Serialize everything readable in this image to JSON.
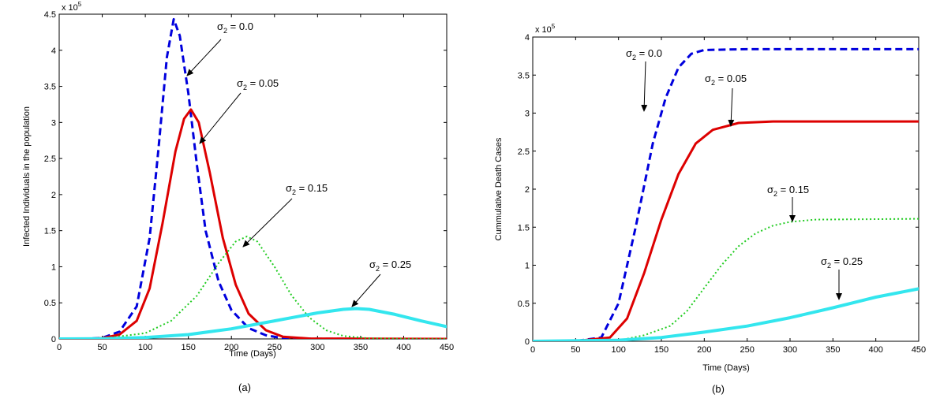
{
  "chart_data": [
    {
      "type": "line",
      "panel_label": "(a)",
      "xlabel": "Time (Days)",
      "ylabel": "Infected Individuals in the population",
      "xlim": [
        0,
        450
      ],
      "ylim": [
        0,
        450000
      ],
      "y_multiplier_base": "x 10",
      "y_multiplier_exp": "5",
      "xticks": [
        "0",
        "50",
        "100",
        "150",
        "200",
        "250",
        "300",
        "350",
        "400",
        "450"
      ],
      "yticks": [
        "0",
        "0.5",
        "1",
        "1.5",
        "2",
        "2.5",
        "3",
        "3.5",
        "4",
        "4.5"
      ],
      "series": [
        {
          "name": "σ2 = 0.0",
          "style": "dashed",
          "color": "#0000dd",
          "points": [
            [
              0,
              0
            ],
            [
              30,
              100
            ],
            [
              50,
              1500
            ],
            [
              70,
              10000
            ],
            [
              90,
              45000
            ],
            [
              105,
              140000
            ],
            [
              115,
              260000
            ],
            [
              125,
              390000
            ],
            [
              133,
              443000
            ],
            [
              140,
              420000
            ],
            [
              150,
              340000
            ],
            [
              160,
              240000
            ],
            [
              170,
              150000
            ],
            [
              185,
              80000
            ],
            [
              200,
              40000
            ],
            [
              220,
              15000
            ],
            [
              240,
              5000
            ],
            [
              260,
              1000
            ],
            [
              300,
              100
            ],
            [
              450,
              0
            ]
          ]
        },
        {
          "name": "σ2 = 0.05",
          "style": "solid",
          "color": "#dd0000",
          "points": [
            [
              0,
              0
            ],
            [
              30,
              100
            ],
            [
              50,
              1000
            ],
            [
              70,
              6000
            ],
            [
              90,
              25000
            ],
            [
              105,
              70000
            ],
            [
              120,
              160000
            ],
            [
              135,
              260000
            ],
            [
              145,
              305000
            ],
            [
              153,
              318000
            ],
            [
              162,
              300000
            ],
            [
              175,
              230000
            ],
            [
              190,
              140000
            ],
            [
              205,
              75000
            ],
            [
              220,
              35000
            ],
            [
              240,
              12000
            ],
            [
              260,
              3000
            ],
            [
              290,
              500
            ],
            [
              450,
              0
            ]
          ]
        },
        {
          "name": "σ2 = 0.15",
          "style": "dotted",
          "color": "#22cc22",
          "points": [
            [
              0,
              0
            ],
            [
              50,
              500
            ],
            [
              100,
              8000
            ],
            [
              130,
              25000
            ],
            [
              160,
              60000
            ],
            [
              185,
              105000
            ],
            [
              205,
              135000
            ],
            [
              218,
              142000
            ],
            [
              230,
              135000
            ],
            [
              250,
              100000
            ],
            [
              270,
              60000
            ],
            [
              290,
              30000
            ],
            [
              310,
              12000
            ],
            [
              330,
              4000
            ],
            [
              360,
              800
            ],
            [
              400,
              100
            ],
            [
              450,
              0
            ]
          ]
        },
        {
          "name": "σ2 = 0.25",
          "style": "thick",
          "color": "#33e6ee",
          "points": [
            [
              0,
              0
            ],
            [
              50,
              200
            ],
            [
              100,
              2000
            ],
            [
              150,
              6000
            ],
            [
              200,
              14000
            ],
            [
              250,
              25000
            ],
            [
              300,
              36000
            ],
            [
              330,
              41000
            ],
            [
              345,
              42000
            ],
            [
              360,
              41000
            ],
            [
              390,
              34000
            ],
            [
              420,
              25000
            ],
            [
              450,
              17000
            ]
          ]
        }
      ],
      "annotations": [
        {
          "base": "σ",
          "sub": "2",
          "rest": " = 0.0"
        },
        {
          "base": "σ",
          "sub": "2",
          "rest": " = 0.05"
        },
        {
          "base": "σ",
          "sub": "2",
          "rest": " = 0.15"
        },
        {
          "base": "σ",
          "sub": "2",
          "rest": " = 0.25"
        }
      ]
    },
    {
      "type": "line",
      "panel_label": "(b)",
      "xlabel": "Time (Days)",
      "ylabel": "Cummulative Death Cases",
      "xlim": [
        0,
        450
      ],
      "ylim": [
        0,
        400000
      ],
      "y_multiplier_base": "x 10",
      "y_multiplier_exp": "5",
      "xticks": [
        "0",
        "50",
        "100",
        "150",
        "200",
        "250",
        "300",
        "350",
        "400",
        "450"
      ],
      "yticks": [
        "0",
        "0.5",
        "1",
        "1.5",
        "2",
        "2.5",
        "3",
        "3.5",
        "4"
      ],
      "series": [
        {
          "name": "σ2 = 0.0",
          "style": "dashed",
          "color": "#0000dd",
          "points": [
            [
              0,
              0
            ],
            [
              50,
              300
            ],
            [
              80,
              5000
            ],
            [
              100,
              50000
            ],
            [
              120,
              150000
            ],
            [
              140,
              260000
            ],
            [
              155,
              320000
            ],
            [
              170,
              360000
            ],
            [
              185,
              378000
            ],
            [
              200,
              383000
            ],
            [
              250,
              384000
            ],
            [
              450,
              384000
            ]
          ]
        },
        {
          "name": "σ2 = 0.05",
          "style": "solid",
          "color": "#dd0000",
          "points": [
            [
              0,
              0
            ],
            [
              50,
              200
            ],
            [
              90,
              5000
            ],
            [
              110,
              30000
            ],
            [
              130,
              90000
            ],
            [
              150,
              160000
            ],
            [
              170,
              220000
            ],
            [
              190,
              260000
            ],
            [
              210,
              278000
            ],
            [
              240,
              287000
            ],
            [
              280,
              289000
            ],
            [
              450,
              289000
            ]
          ]
        },
        {
          "name": "σ2 = 0.15",
          "style": "dotted",
          "color": "#22cc22",
          "points": [
            [
              0,
              0
            ],
            [
              100,
              1000
            ],
            [
              130,
              8000
            ],
            [
              160,
              20000
            ],
            [
              180,
              40000
            ],
            [
              200,
              70000
            ],
            [
              220,
              100000
            ],
            [
              240,
              125000
            ],
            [
              260,
              142000
            ],
            [
              280,
              152000
            ],
            [
              300,
              157000
            ],
            [
              330,
              160000
            ],
            [
              450,
              161000
            ]
          ]
        },
        {
          "name": "σ2 = 0.25",
          "style": "thick",
          "color": "#33e6ee",
          "points": [
            [
              0,
              0
            ],
            [
              100,
              1500
            ],
            [
              150,
              5000
            ],
            [
              200,
              12000
            ],
            [
              250,
              20000
            ],
            [
              300,
              31000
            ],
            [
              350,
              44000
            ],
            [
              400,
              58000
            ],
            [
              450,
              69000
            ]
          ]
        }
      ],
      "annotations": [
        {
          "base": "σ",
          "sub": "2",
          "rest": " = 0.0"
        },
        {
          "base": "σ",
          "sub": "2",
          "rest": " = 0.05"
        },
        {
          "base": "σ",
          "sub": "2",
          "rest": " = 0.15"
        },
        {
          "base": "σ",
          "sub": "2",
          "rest": " = 0.25"
        }
      ]
    }
  ]
}
